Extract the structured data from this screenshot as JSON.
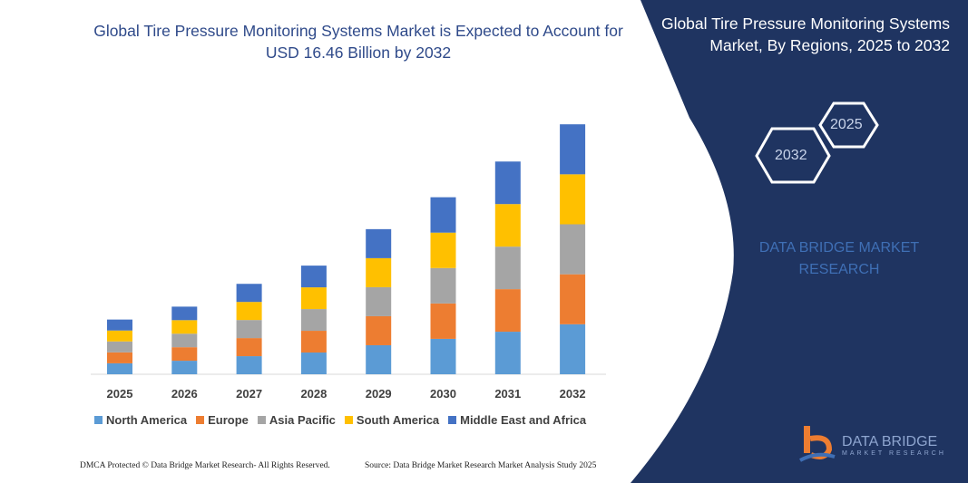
{
  "title": "Global Tire Pressure Monitoring Systems Market is Expected to Account for USD 16.46 Billion by 2032",
  "side_panel": {
    "title": "Global Tire Pressure Monitoring Systems Market, By Regions, 2025 to 2032",
    "hex_start": "2025",
    "hex_end": "2032",
    "brand_text": "DATA BRIDGE MARKET RESEARCH",
    "logo_name": "DATA BRIDGE",
    "logo_sub": "MARKET RESEARCH",
    "bg_color": "#1f3461"
  },
  "footer": {
    "left": "DMCA Protected © Data Bridge Market Research- All Rights Reserved.",
    "right": "Source: Data Bridge Market Research  Market Analysis Study 2025"
  },
  "chart_data": {
    "type": "bar",
    "stacked": true,
    "categories": [
      "2025",
      "2026",
      "2027",
      "2028",
      "2029",
      "2030",
      "2031",
      "2032"
    ],
    "series": [
      {
        "name": "North America",
        "color": "#5b9bd5",
        "values": [
          0.72,
          0.89,
          1.19,
          1.43,
          1.91,
          2.33,
          2.8,
          3.29
        ]
      },
      {
        "name": "Europe",
        "color": "#ed7d31",
        "values": [
          0.72,
          0.89,
          1.19,
          1.43,
          1.91,
          2.33,
          2.8,
          3.29
        ]
      },
      {
        "name": "Asia Pacific",
        "color": "#a5a5a5",
        "values": [
          0.72,
          0.89,
          1.19,
          1.43,
          1.91,
          2.33,
          2.8,
          3.29
        ]
      },
      {
        "name": "South America",
        "color": "#ffc000",
        "values": [
          0.72,
          0.89,
          1.19,
          1.43,
          1.91,
          2.33,
          2.8,
          3.29
        ]
      },
      {
        "name": "Middle East and Africa",
        "color": "#4472c4",
        "values": [
          0.72,
          0.89,
          1.19,
          1.43,
          1.91,
          2.33,
          2.8,
          3.29
        ]
      }
    ],
    "ylim": [
      0,
      16.46
    ],
    "grid": false,
    "legend": "bottom"
  }
}
